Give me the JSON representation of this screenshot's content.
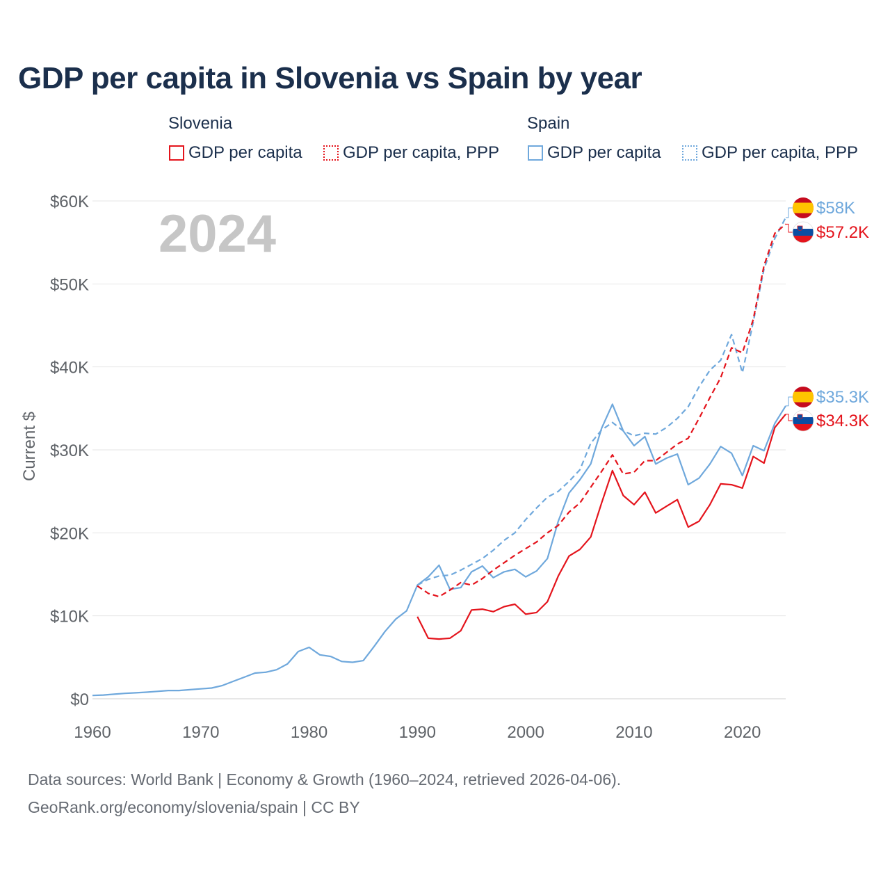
{
  "title": "GDP per capita in Slovenia vs Spain by year",
  "legend": {
    "groups": [
      {
        "name": "Slovenia",
        "items": [
          {
            "label": "GDP per capita",
            "style": "solid",
            "color": "#e4141c"
          },
          {
            "label": "GDP per capita, PPP",
            "style": "dotted",
            "color": "#e4141c"
          }
        ]
      },
      {
        "name": "Spain",
        "items": [
          {
            "label": "GDP per capita",
            "style": "solid",
            "color": "#6fa8dc"
          },
          {
            "label": "GDP per capita, PPP",
            "style": "dotted",
            "color": "#6fa8dc"
          }
        ]
      }
    ]
  },
  "year_watermark": "2024",
  "end_labels": {
    "spain_ppp": "$58K",
    "slovenia_ppp": "$57.2K",
    "spain_gdp": "$35.3K",
    "slovenia_gdp": "$34.3K"
  },
  "footer": {
    "line1": "Data sources: World Bank | Economy & Growth (1960–2024, retrieved 2026-04-06).",
    "line2": "GeoRank.org/economy/slovenia/spain | CC BY"
  },
  "colors": {
    "slovenia": "#e4141c",
    "spain": "#6fa8dc",
    "title": "#1b2f4c",
    "axis_text": "#5f6368",
    "grid": "#e6e6e6"
  },
  "icons": [
    "spain-flag-icon",
    "slovenia-flag-icon"
  ],
  "chart_data": {
    "type": "line",
    "title": "GDP per capita in Slovenia vs Spain by year",
    "xlabel": "",
    "ylabel": "Current $",
    "xlim": [
      1960,
      2024
    ],
    "ylim": [
      0,
      60000
    ],
    "x_ticks": [
      1960,
      1970,
      1980,
      1990,
      2000,
      2010,
      2020
    ],
    "y_ticks": [
      0,
      10000,
      20000,
      30000,
      40000,
      50000,
      60000
    ],
    "y_tick_labels": [
      "$0",
      "$10K",
      "$20K",
      "$30K",
      "$40K",
      "$50K",
      "$60K"
    ],
    "grid": true,
    "series": [
      {
        "name": "Spain GDP per capita",
        "country": "Spain",
        "metric": "GDP per capita",
        "style": "solid",
        "color": "#6fa8dc",
        "x": [
          1960,
          1961,
          1962,
          1963,
          1964,
          1965,
          1966,
          1967,
          1968,
          1969,
          1970,
          1971,
          1972,
          1973,
          1974,
          1975,
          1976,
          1977,
          1978,
          1979,
          1980,
          1981,
          1982,
          1983,
          1984,
          1985,
          1986,
          1987,
          1988,
          1989,
          1990,
          1991,
          1992,
          1993,
          1994,
          1995,
          1996,
          1997,
          1998,
          1999,
          2000,
          2001,
          2002,
          2003,
          2004,
          2005,
          2006,
          2007,
          2008,
          2009,
          2010,
          2011,
          2012,
          2013,
          2014,
          2015,
          2016,
          2017,
          2018,
          2019,
          2020,
          2021,
          2022,
          2023,
          2024
        ],
        "values": [
          400,
          450,
          550,
          650,
          720,
          800,
          900,
          1000,
          1000,
          1100,
          1200,
          1300,
          1600,
          2100,
          2600,
          3100,
          3200,
          3500,
          4200,
          5700,
          6200,
          5300,
          5100,
          4500,
          4400,
          4600,
          6300,
          8100,
          9600,
          10600,
          13700,
          14700,
          16100,
          13200,
          13400,
          15300,
          16000,
          14600,
          15300,
          15600,
          14700,
          15400,
          16900,
          21400,
          24800,
          26400,
          28300,
          32600,
          35500,
          32300,
          30500,
          31600,
          28300,
          29000,
          29500,
          25800,
          26600,
          28300,
          30400,
          29600,
          26900,
          30500,
          29900,
          33200,
          35300
        ]
      },
      {
        "name": "Spain GDP per capita, PPP",
        "country": "Spain",
        "metric": "GDP per capita, PPP",
        "style": "dashed",
        "color": "#6fa8dc",
        "x": [
          1990,
          1991,
          1992,
          1993,
          1994,
          1995,
          1996,
          1997,
          1998,
          1999,
          2000,
          2001,
          2002,
          2003,
          2004,
          2005,
          2006,
          2007,
          2008,
          2009,
          2010,
          2011,
          2012,
          2013,
          2014,
          2015,
          2016,
          2017,
          2018,
          2019,
          2020,
          2021,
          2022,
          2023,
          2024
        ],
        "values": [
          13700,
          14400,
          14800,
          14900,
          15500,
          16200,
          16900,
          17900,
          19100,
          20000,
          21600,
          23000,
          24300,
          25000,
          26200,
          27600,
          30800,
          32400,
          33300,
          32300,
          31700,
          32000,
          31900,
          32700,
          33800,
          35200,
          37600,
          39600,
          40800,
          43900,
          39300,
          45400,
          51800,
          55500,
          58000
        ]
      },
      {
        "name": "Slovenia GDP per capita",
        "country": "Slovenia",
        "metric": "GDP per capita",
        "style": "solid",
        "color": "#e4141c",
        "x": [
          1990,
          1991,
          1992,
          1993,
          1994,
          1995,
          1996,
          1997,
          1998,
          1999,
          2000,
          2001,
          2002,
          2003,
          2004,
          2005,
          2006,
          2007,
          2008,
          2009,
          2010,
          2011,
          2012,
          2013,
          2014,
          2015,
          2016,
          2017,
          2018,
          2019,
          2020,
          2021,
          2022,
          2023,
          2024
        ],
        "values": [
          9900,
          7300,
          7200,
          7300,
          8200,
          10700,
          10800,
          10500,
          11100,
          11400,
          10200,
          10400,
          11700,
          14800,
          17200,
          18000,
          19500,
          23600,
          27500,
          24500,
          23400,
          24900,
          22400,
          23200,
          24000,
          20700,
          21400,
          23400,
          25900,
          25800,
          25400,
          29200,
          28400,
          32700,
          34300
        ]
      },
      {
        "name": "Slovenia GDP per capita, PPP",
        "country": "Slovenia",
        "metric": "GDP per capita, PPP",
        "style": "dashed",
        "color": "#e4141c",
        "x": [
          1990,
          1991,
          1992,
          1993,
          1994,
          1995,
          1996,
          1997,
          1998,
          1999,
          2000,
          2001,
          2002,
          2003,
          2004,
          2005,
          2006,
          2007,
          2008,
          2009,
          2010,
          2011,
          2012,
          2013,
          2014,
          2015,
          2016,
          2017,
          2018,
          2019,
          2020,
          2021,
          2022,
          2023,
          2024
        ],
        "values": [
          13600,
          12700,
          12300,
          13100,
          14000,
          13700,
          14500,
          15500,
          16400,
          17300,
          18100,
          18900,
          20000,
          20900,
          22500,
          23600,
          25500,
          27400,
          29400,
          27100,
          27300,
          28700,
          28700,
          29700,
          30700,
          31400,
          33800,
          36300,
          38700,
          42300,
          41700,
          45700,
          52200,
          56100,
          57200
        ]
      }
    ]
  }
}
